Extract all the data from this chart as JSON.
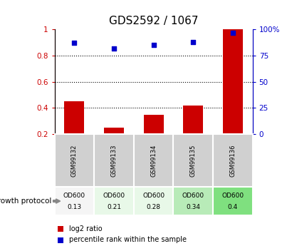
{
  "title": "GDS2592 / 1067",
  "samples": [
    "GSM99132",
    "GSM99133",
    "GSM99134",
    "GSM99135",
    "GSM99136"
  ],
  "log2_ratio": [
    0.45,
    0.25,
    0.35,
    0.42,
    1.0
  ],
  "percentile_rank": [
    87,
    82,
    85,
    88,
    97
  ],
  "bar_color": "#cc0000",
  "dot_color": "#0000cc",
  "ylim_left": [
    0.2,
    1.0
  ],
  "ylim_right": [
    0,
    100
  ],
  "yticks_left": [
    0.2,
    0.4,
    0.6,
    0.8,
    1.0
  ],
  "yticks_right": [
    0,
    25,
    50,
    75,
    100
  ],
  "ytick_labels_left": [
    "0.2",
    "0.4",
    "0.6",
    "0.8",
    "1"
  ],
  "ytick_labels_right": [
    "0",
    "25",
    "50",
    "75",
    "100%"
  ],
  "dotted_lines": [
    0.4,
    0.6,
    0.8
  ],
  "od600_values": [
    "0.13",
    "0.21",
    "0.28",
    "0.34",
    "0.4"
  ],
  "cell_colors_gsm": [
    "#d0d0d0",
    "#d0d0d0",
    "#d0d0d0",
    "#d0d0d0",
    "#d0d0d0"
  ],
  "cell_colors_od": [
    "#f5f5f5",
    "#e8f8e8",
    "#e8f8e8",
    "#b8ebb8",
    "#7fe07f"
  ],
  "legend_items": [
    {
      "color": "#cc0000",
      "label": "log2 ratio"
    },
    {
      "color": "#0000cc",
      "label": "percentile rank within the sample"
    }
  ],
  "bar_width": 0.5,
  "bar_baseline": 0.2,
  "growth_protocol_label": "growth protocol"
}
